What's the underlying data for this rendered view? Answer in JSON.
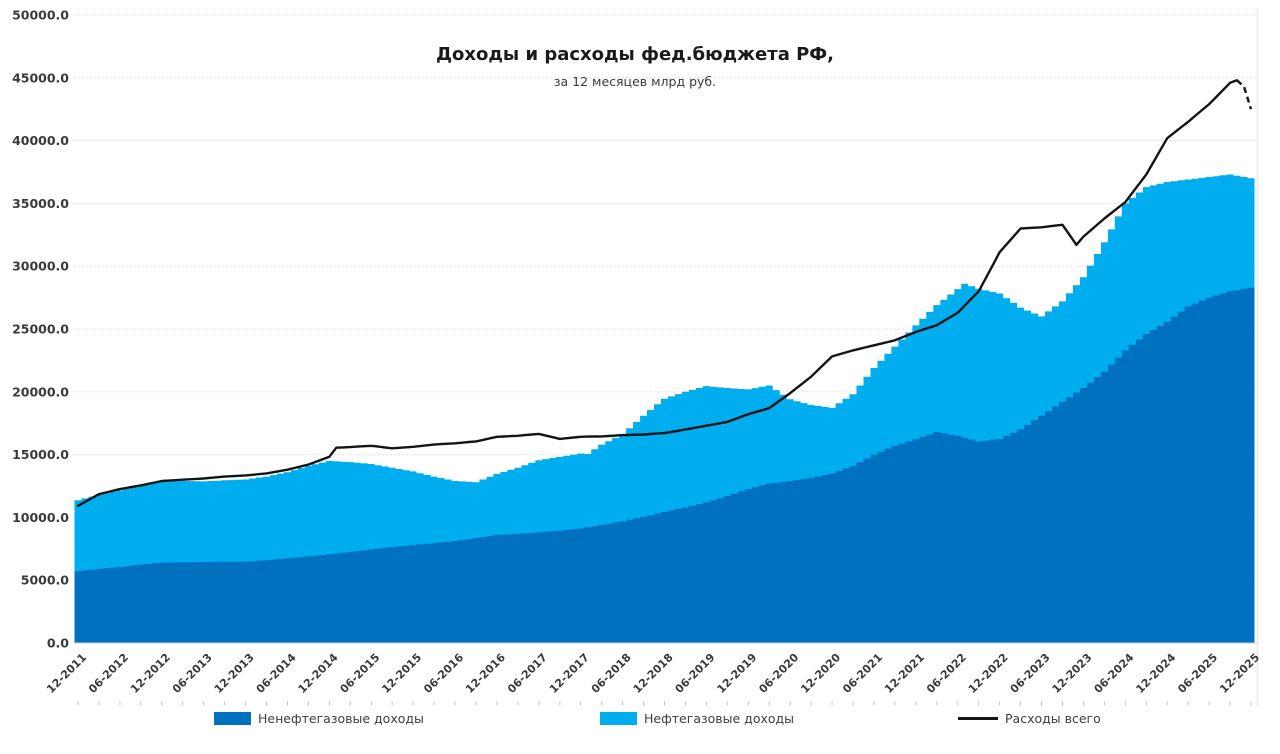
{
  "chart": {
    "title": "Доходы и расходы фед.бюджета РФ,",
    "subtitle": "за 12 месяцев млрд руб.",
    "legend": [
      {
        "label": "Ненефтегазовые доходы",
        "color": "#0071BF",
        "type": "area"
      },
      {
        "label": "Нефтегазовые доходы",
        "color": "#00AEEF",
        "type": "area"
      },
      {
        "label": "Расходы всего",
        "color": "#141414",
        "type": "line"
      }
    ]
  },
  "chart_data": {
    "type": "area",
    "subtype": "stacked monthly columns (revenues) with overlay line (expenditures), trailing 12 months",
    "unit": "млрд руб.",
    "x_start": "12-2011",
    "x_end": "12-2025",
    "x_step_months": 1,
    "months_total": 169,
    "x_tick_every_months": 6,
    "x_tick_labels": [
      "12-2011",
      "06-2012",
      "12-2012",
      "06-2013",
      "12-2013",
      "06-2014",
      "12-2014",
      "06-2015",
      "12-2015",
      "06-2016",
      "12-2016",
      "06-2017",
      "12-2017",
      "06-2018",
      "12-2018",
      "06-2019",
      "12-2019",
      "06-2020",
      "12-2020",
      "06-2021",
      "12-2021",
      "06-2022",
      "12-2022",
      "06-2023",
      "12-2023",
      "06-2024",
      "12-2024",
      "06-2025",
      "12-2025"
    ],
    "y_ticks": [
      "0.0",
      "5000.0",
      "10000.0",
      "15000.0",
      "20000.0",
      "25000.0",
      "30000.0",
      "35000.0",
      "40000.0",
      "45000.0",
      "50000.0"
    ],
    "ylim": [
      0,
      50000
    ],
    "grid": "horizontal dotted",
    "legend_position": "bottom",
    "note": "anchors are [month_index_from_2011-12, value_bln_rub]; monthly values between anchors are linear-interpolated; stacked light-blue top equals total federal revenues",
    "series": [
      {
        "name": "Ненефтегазовые доходы",
        "role": "stack-bottom",
        "color": "#0071BF",
        "anchors": [
          [
            0,
            5726
          ],
          [
            3,
            5900
          ],
          [
            6,
            6050
          ],
          [
            9,
            6250
          ],
          [
            12,
            6402
          ],
          [
            15,
            6430
          ],
          [
            18,
            6450
          ],
          [
            21,
            6470
          ],
          [
            24,
            6486
          ],
          [
            27,
            6600
          ],
          [
            30,
            6750
          ],
          [
            33,
            6900
          ],
          [
            36,
            7063
          ],
          [
            39,
            7250
          ],
          [
            42,
            7450
          ],
          [
            45,
            7650
          ],
          [
            48,
            7797
          ],
          [
            51,
            7950
          ],
          [
            54,
            8120
          ],
          [
            57,
            8350
          ],
          [
            60,
            8616
          ],
          [
            63,
            8700
          ],
          [
            66,
            8800
          ],
          [
            69,
            8950
          ],
          [
            72,
            9117
          ],
          [
            75,
            9400
          ],
          [
            78,
            9700
          ],
          [
            81,
            10050
          ],
          [
            84,
            10437
          ],
          [
            87,
            10800
          ],
          [
            90,
            11200
          ],
          [
            93,
            11700
          ],
          [
            96,
            12264
          ],
          [
            99,
            12700
          ],
          [
            102,
            12900
          ],
          [
            105,
            13150
          ],
          [
            108,
            13488
          ],
          [
            111,
            14100
          ],
          [
            114,
            15000
          ],
          [
            117,
            15700
          ],
          [
            120,
            16230
          ],
          [
            123,
            16800
          ],
          [
            126,
            16500
          ],
          [
            129,
            16050
          ],
          [
            132,
            16239
          ],
          [
            135,
            17000
          ],
          [
            138,
            18100
          ],
          [
            141,
            19200
          ],
          [
            144,
            20303
          ],
          [
            147,
            21600
          ],
          [
            150,
            23300
          ],
          [
            153,
            24600
          ],
          [
            156,
            25576
          ],
          [
            159,
            26800
          ],
          [
            162,
            27500
          ],
          [
            165,
            28000
          ],
          [
            168,
            28300
          ]
        ]
      },
      {
        "name": "Нефтегазовые доходы",
        "role": "stack-top (anchors given as total revenues = oil-gas + non-oil-gas)",
        "color": "#00AEEF",
        "anchors": [
          [
            0,
            11368
          ],
          [
            3,
            11800
          ],
          [
            6,
            12150
          ],
          [
            9,
            12500
          ],
          [
            12,
            12856
          ],
          [
            15,
            12900
          ],
          [
            18,
            12870
          ],
          [
            21,
            12950
          ],
          [
            24,
            13020
          ],
          [
            27,
            13250
          ],
          [
            30,
            13600
          ],
          [
            33,
            14100
          ],
          [
            36,
            14497
          ],
          [
            39,
            14400
          ],
          [
            42,
            14250
          ],
          [
            45,
            13950
          ],
          [
            48,
            13659
          ],
          [
            51,
            13250
          ],
          [
            54,
            12900
          ],
          [
            57,
            12800
          ],
          [
            60,
            13460
          ],
          [
            63,
            13950
          ],
          [
            66,
            14550
          ],
          [
            69,
            14820
          ],
          [
            72,
            15089
          ],
          [
            73,
            15050
          ],
          [
            75,
            15800
          ],
          [
            78,
            16600
          ],
          [
            81,
            18100
          ],
          [
            84,
            19454
          ],
          [
            87,
            20000
          ],
          [
            90,
            20450
          ],
          [
            93,
            20300
          ],
          [
            96,
            20188
          ],
          [
            99,
            20500
          ],
          [
            102,
            19400
          ],
          [
            105,
            18950
          ],
          [
            108,
            18722
          ],
          [
            111,
            19800
          ],
          [
            114,
            21900
          ],
          [
            117,
            23600
          ],
          [
            120,
            25286
          ],
          [
            123,
            26900
          ],
          [
            127,
            28600
          ],
          [
            129,
            28200
          ],
          [
            132,
            27825
          ],
          [
            135,
            26700
          ],
          [
            138,
            26000
          ],
          [
            141,
            27200
          ],
          [
            144,
            29124
          ],
          [
            147,
            31900
          ],
          [
            150,
            35000
          ],
          [
            153,
            36300
          ],
          [
            156,
            36707
          ],
          [
            159,
            36900
          ],
          [
            162,
            37100
          ],
          [
            165,
            37300
          ],
          [
            168,
            37000
          ]
        ]
      },
      {
        "name": "Расходы всего",
        "role": "line",
        "color": "#141414",
        "dashed_from_month": 166,
        "anchors": [
          [
            0,
            10926
          ],
          [
            3,
            11850
          ],
          [
            6,
            12250
          ],
          [
            9,
            12550
          ],
          [
            12,
            12895
          ],
          [
            15,
            13000
          ],
          [
            18,
            13100
          ],
          [
            21,
            13250
          ],
          [
            24,
            13343
          ],
          [
            27,
            13500
          ],
          [
            30,
            13800
          ],
          [
            33,
            14200
          ],
          [
            36,
            14832
          ],
          [
            37,
            15550
          ],
          [
            39,
            15600
          ],
          [
            42,
            15700
          ],
          [
            45,
            15500
          ],
          [
            48,
            15620
          ],
          [
            51,
            15800
          ],
          [
            54,
            15900
          ],
          [
            57,
            16050
          ],
          [
            60,
            16416
          ],
          [
            63,
            16500
          ],
          [
            66,
            16650
          ],
          [
            69,
            16250
          ],
          [
            72,
            16420
          ],
          [
            75,
            16450
          ],
          [
            78,
            16550
          ],
          [
            81,
            16600
          ],
          [
            84,
            16713
          ],
          [
            87,
            17000
          ],
          [
            90,
            17300
          ],
          [
            93,
            17600
          ],
          [
            96,
            18214
          ],
          [
            99,
            18700
          ],
          [
            102,
            19900
          ],
          [
            105,
            21200
          ],
          [
            108,
            22822
          ],
          [
            111,
            23300
          ],
          [
            114,
            23700
          ],
          [
            117,
            24100
          ],
          [
            120,
            24762
          ],
          [
            123,
            25300
          ],
          [
            126,
            26300
          ],
          [
            129,
            28000
          ],
          [
            132,
            31113
          ],
          [
            135,
            33000
          ],
          [
            138,
            33100
          ],
          [
            141,
            33300
          ],
          [
            143,
            31700
          ],
          [
            144,
            32354
          ],
          [
            147,
            33800
          ],
          [
            150,
            35100
          ],
          [
            153,
            37300
          ],
          [
            156,
            40192
          ],
          [
            159,
            41500
          ],
          [
            162,
            42900
          ],
          [
            165,
            44600
          ],
          [
            166,
            44800
          ],
          [
            167,
            44300
          ],
          [
            168,
            42500
          ]
        ]
      }
    ]
  }
}
